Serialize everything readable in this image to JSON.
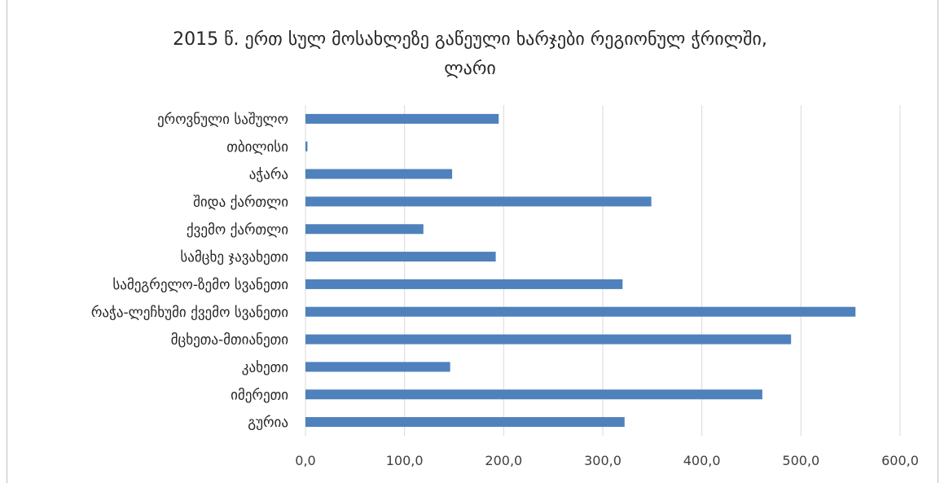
{
  "chart_data": {
    "type": "bar",
    "orientation": "horizontal",
    "title_line1": "2015 წ. ერთ სულ მოსახლეზე გაწეული ხარჯები რეგიონულ ჭრილში,",
    "title_line2": "ლარი",
    "categories": [
      "ეროვნული საშულო",
      "თბილისი",
      "აჭარა",
      "შიდა ქართლი",
      "ქვემო ქართლი",
      "სამცხე ჯავახეთი",
      "სამეგრელო-ზემო სვანეთი",
      "რაჭა-ლეჩხუმი ქვემო სვანეთი",
      "მცხეთა-მთიანეთი",
      "კახეთი",
      "იმერეთი",
      "გურია"
    ],
    "values": [
      195,
      2,
      148,
      349,
      119,
      192,
      320,
      555,
      490,
      146,
      461,
      322
    ],
    "xlim": [
      0,
      600
    ],
    "xticks": [
      "0,0",
      "100,0",
      "200,0",
      "300,0",
      "400,0",
      "500,0",
      "600,0"
    ],
    "xgrid": true,
    "legend": "none",
    "bar_color": "#4f81bd"
  }
}
